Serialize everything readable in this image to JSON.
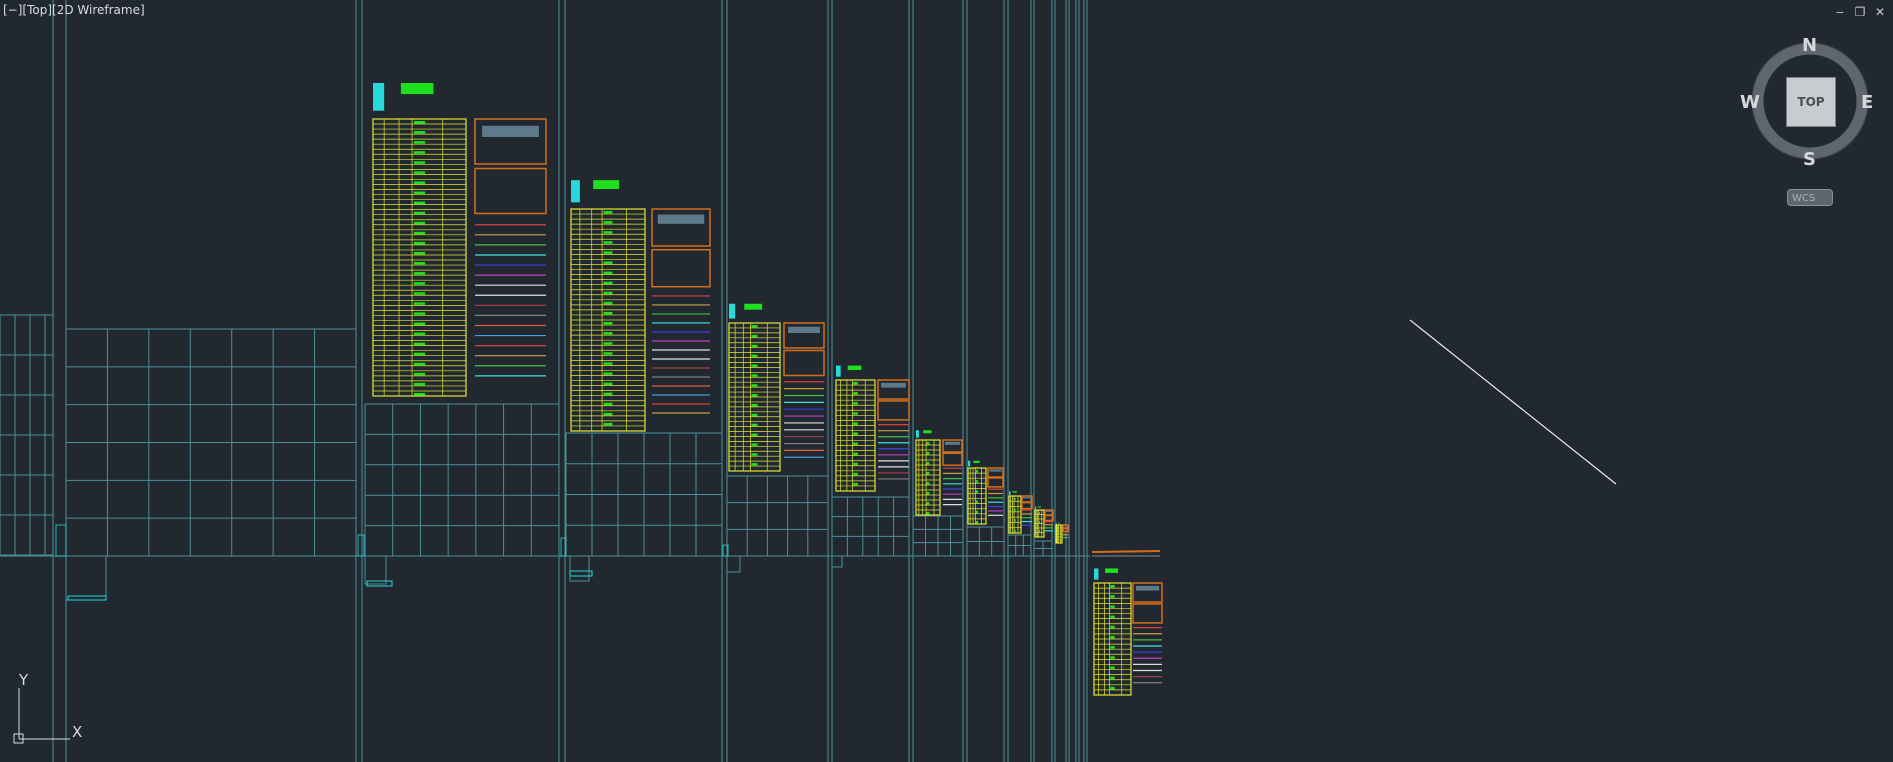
{
  "viewport": {
    "label": "[−][Top][2D Wireframe]",
    "visual_style": "2D Wireframe",
    "view": "Top"
  },
  "window_controls": {
    "minimize": "‒",
    "restore": "❐",
    "close": "✕"
  },
  "viewcube": {
    "north": "N",
    "south": "S",
    "east": "E",
    "west": "W",
    "face": "TOP",
    "wcs_label": "WCS"
  },
  "ucs_icon": {
    "x_label": "X",
    "y_label": "Y"
  },
  "colors": {
    "background": "#212830",
    "grid_lines": "#4e8f97",
    "table_yellow": "#e4e632",
    "frame_orange": "#d46e1c",
    "cyan": "#27d9d9",
    "green": "#1fe01f"
  },
  "icons": [
    "viewcube-compass",
    "ucs-icon",
    "minimize-icon",
    "restore-icon",
    "close-icon"
  ]
}
